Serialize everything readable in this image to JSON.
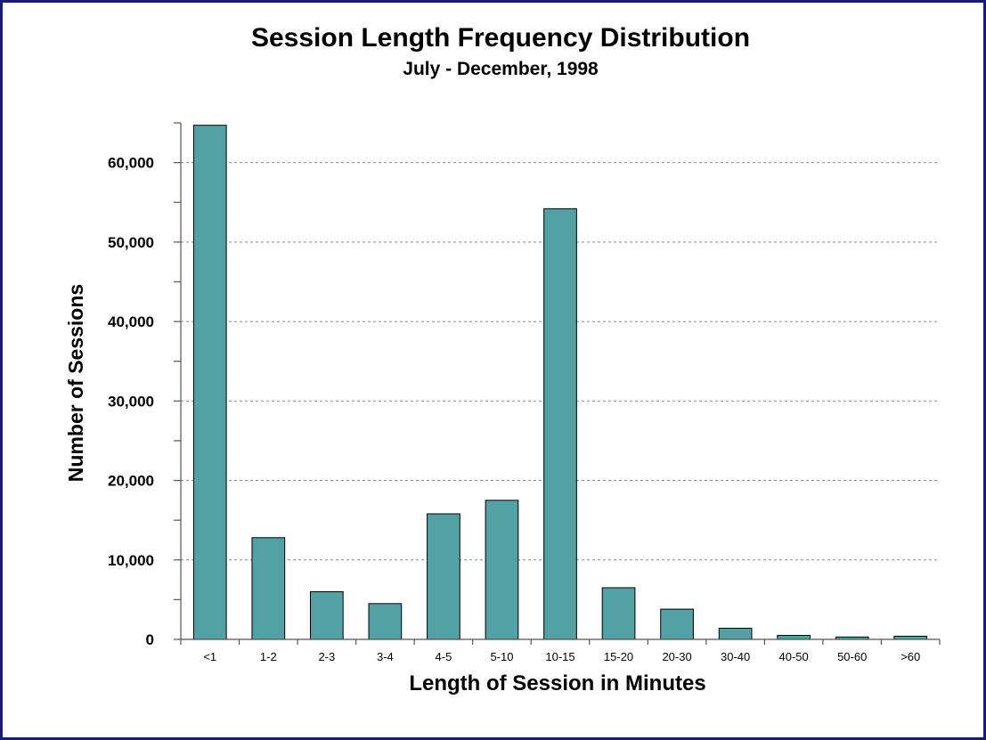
{
  "chart_data": {
    "type": "bar",
    "title": "Session Length Frequency Distribution",
    "subtitle": "July - December, 1998",
    "xlabel": "Length of Session in Minutes",
    "ylabel": "Number of Sessions",
    "categories": [
      "<1",
      "1-2",
      "2-3",
      "3-4",
      "4-5",
      "5-10",
      "10-15",
      "15-20",
      "20-30",
      "30-40",
      "40-50",
      "50-60",
      ">60"
    ],
    "values": [
      64700,
      12800,
      6000,
      4500,
      15800,
      17500,
      54200,
      6500,
      3800,
      1400,
      500,
      300,
      400
    ],
    "ylim": [
      0,
      65000
    ],
    "yticks": [
      0,
      10000,
      20000,
      30000,
      40000,
      50000,
      60000
    ],
    "ytick_labels": [
      "0",
      "10,000",
      "20,000",
      "30,000",
      "40,000",
      "50,000",
      "60,000"
    ],
    "grid": true,
    "colors": {
      "bar": "#52a1a5",
      "frame": "#1a1a7a"
    }
  }
}
